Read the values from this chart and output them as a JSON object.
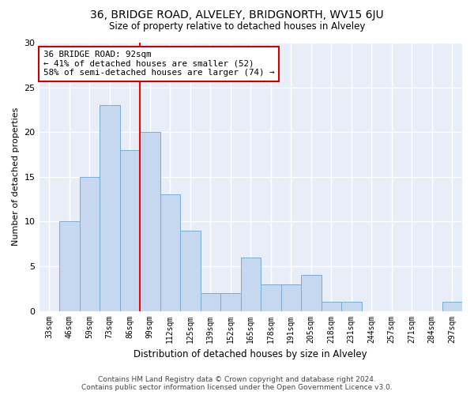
{
  "title": "36, BRIDGE ROAD, ALVELEY, BRIDGNORTH, WV15 6JU",
  "subtitle": "Size of property relative to detached houses in Alveley",
  "xlabel": "Distribution of detached houses by size in Alveley",
  "ylabel": "Number of detached properties",
  "categories": [
    "33sqm",
    "46sqm",
    "59sqm",
    "73sqm",
    "86sqm",
    "99sqm",
    "112sqm",
    "125sqm",
    "139sqm",
    "152sqm",
    "165sqm",
    "178sqm",
    "191sqm",
    "205sqm",
    "218sqm",
    "231sqm",
    "244sqm",
    "257sqm",
    "271sqm",
    "284sqm",
    "297sqm"
  ],
  "values": [
    0,
    10,
    15,
    23,
    18,
    20,
    13,
    9,
    2,
    2,
    6,
    3,
    3,
    4,
    1,
    1,
    0,
    0,
    0,
    0,
    1
  ],
  "bar_color": "#c5d8f0",
  "bar_edge_color": "#7aadd4",
  "vline_x": 4.5,
  "annotation_text": "36 BRIDGE ROAD: 92sqm\n← 41% of detached houses are smaller (52)\n58% of semi-detached houses are larger (74) →",
  "annotation_box_color": "#ffffff",
  "annotation_box_edge_color": "#cc0000",
  "ylim": [
    0,
    30
  ],
  "yticks": [
    0,
    5,
    10,
    15,
    20,
    25,
    30
  ],
  "plot_bg_color": "#e8eef8",
  "fig_bg_color": "#ffffff",
  "grid_color": "#ffffff",
  "footer": "Contains HM Land Registry data © Crown copyright and database right 2024.\nContains public sector information licensed under the Open Government Licence v3.0."
}
